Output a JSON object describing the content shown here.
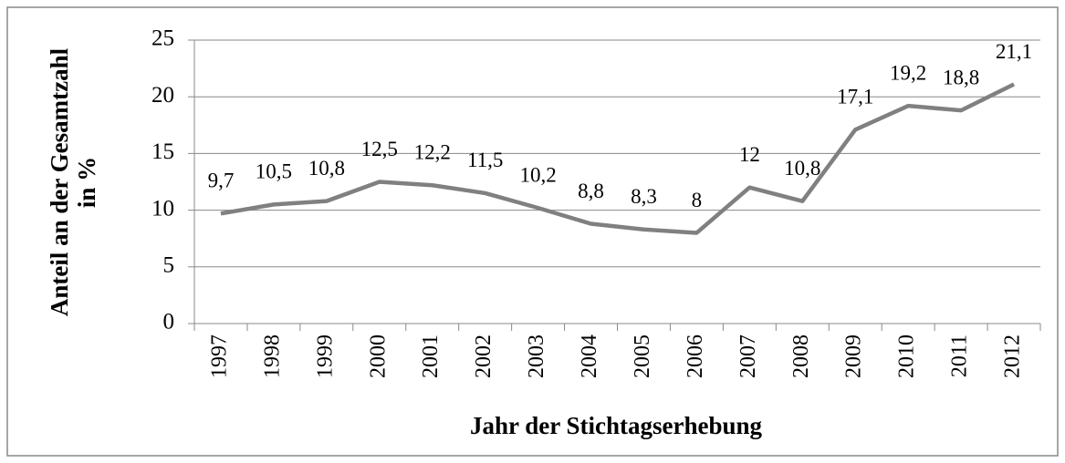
{
  "chart_data": {
    "type": "line",
    "y_label": "Anteil an der Gesamtzahl in %",
    "x_label": "Jahr der Stichtagserhebung",
    "categories": [
      "1997",
      "1998",
      "1999",
      "2000",
      "2001",
      "2002",
      "2003",
      "2004",
      "2005",
      "2006",
      "2007",
      "2008",
      "2009",
      "2010",
      "2011",
      "2012"
    ],
    "values": [
      9.7,
      10.5,
      10.8,
      12.5,
      12.2,
      11.5,
      10.2,
      8.8,
      8.3,
      8,
      12,
      10.8,
      17.1,
      19.2,
      18.8,
      21.1
    ],
    "value_labels": [
      "9,7",
      "10,5",
      "10,8",
      "12,5",
      "12,2",
      "11,5",
      "10,2",
      "8,8",
      "8,3",
      "8",
      "12",
      "10,8",
      "17,1",
      "19,2",
      "18,8",
      "21,1"
    ],
    "color": "#808080",
    "ylim": [
      0,
      25
    ],
    "yticks": [
      0,
      5,
      10,
      15,
      20,
      25
    ],
    "grid": true
  }
}
